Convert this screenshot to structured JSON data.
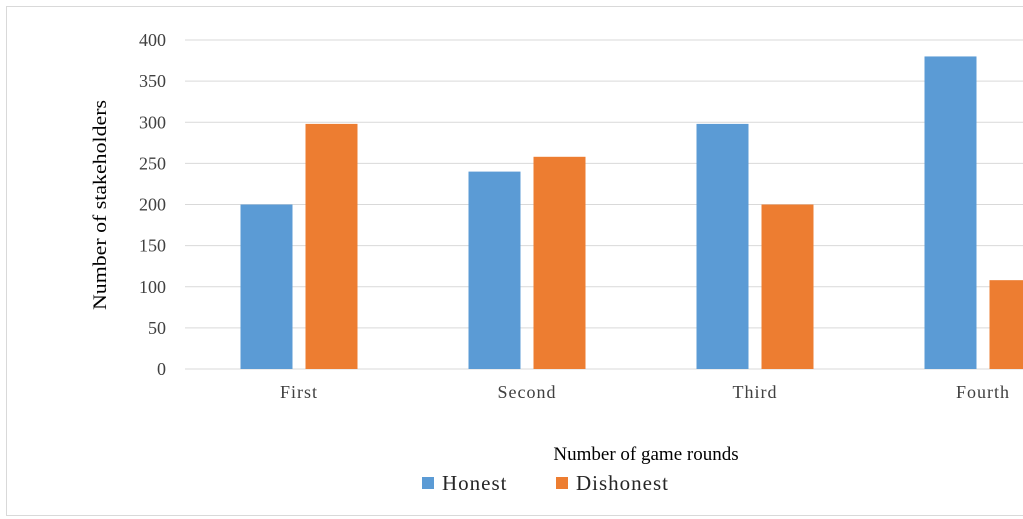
{
  "chart_data": {
    "type": "bar",
    "categories": [
      "First",
      "Second",
      "Third",
      "Fourth"
    ],
    "series": [
      {
        "name": "Honest",
        "values": [
          200,
          240,
          298,
          380
        ],
        "color": "#5b9bd5"
      },
      {
        "name": "Dishonest",
        "values": [
          298,
          258,
          200,
          108
        ],
        "color": "#ed7d31"
      }
    ],
    "xlabel": "Number of game rounds",
    "ylabel": "Number of stakeholders",
    "ylim": [
      0,
      400
    ],
    "yticks": [
      0,
      50,
      100,
      150,
      200,
      250,
      300,
      350,
      400
    ],
    "grid": true,
    "legend_position": "bottom"
  }
}
